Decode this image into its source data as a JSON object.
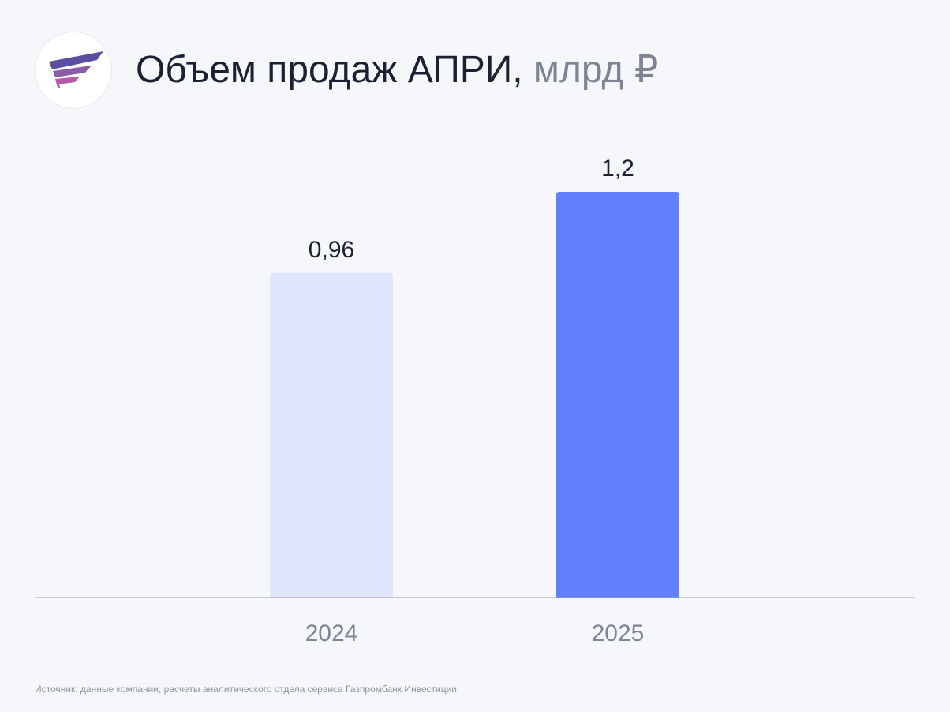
{
  "title": {
    "main": "Объем продаж АПРИ,",
    "unit": "млрд ₽"
  },
  "source": "Источник: данные компании, расчеты аналитического отдела сервиса Газпромбанк Инвестиции",
  "chart_data": {
    "type": "bar",
    "title": "Объем продаж АПРИ, млрд ₽",
    "categories": [
      "2024",
      "2025"
    ],
    "values": [
      0.96,
      1.2
    ],
    "labels": [
      "0,96",
      "1,2"
    ],
    "colors": [
      "#e0e6fc",
      "#6080fd"
    ],
    "xlabel": "",
    "ylabel": "",
    "ylim": [
      0,
      1.2
    ],
    "grid": false
  }
}
